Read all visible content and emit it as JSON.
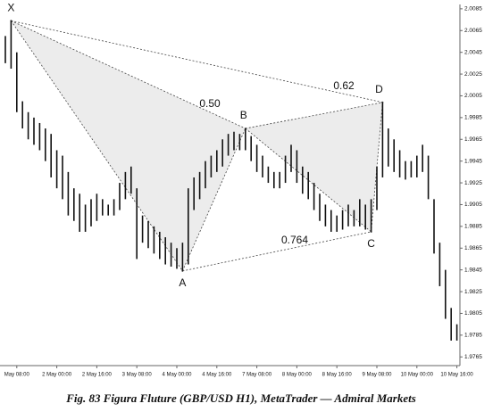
{
  "chart_data": {
    "type": "range_bar",
    "caption": "Fig. 83 Figura Fluture (GBP/USD H1), MetaTrader — Admiral Markets",
    "color": "#111111",
    "categories": [
      null,
      null,
      "May 08:00",
      null,
      null,
      null,
      null,
      null,
      null,
      "2 May 00:00",
      null,
      null,
      null,
      null,
      null,
      null,
      "2 May 16:00",
      null,
      null,
      null,
      null,
      null,
      null,
      "3 May 08:00",
      null,
      null,
      null,
      null,
      null,
      null,
      "4 May 00:00",
      null,
      null,
      null,
      null,
      null,
      null,
      "4 May 16:00",
      null,
      null,
      null,
      null,
      null,
      null,
      "7 May 08:00",
      null,
      null,
      null,
      null,
      null,
      null,
      "8 May 00:00",
      null,
      null,
      null,
      null,
      null,
      null,
      "8 May 16:00",
      null,
      null,
      null,
      null,
      null,
      null,
      "9 May 08:00",
      null,
      null,
      null,
      null,
      null,
      null,
      "10 May 00:00",
      null,
      null,
      null,
      null,
      null,
      null,
      "10 May 16:00"
    ],
    "high": [
      2.006,
      2.0074,
      2.0045,
      2.0,
      1.999,
      1.9985,
      1.998,
      1.9975,
      1.997,
      1.9955,
      1.995,
      1.9935,
      1.992,
      1.9915,
      1.9905,
      1.991,
      1.9915,
      1.991,
      1.9905,
      1.991,
      1.9925,
      1.9935,
      1.994,
      1.992,
      1.9895,
      1.989,
      1.9885,
      1.988,
      1.9875,
      1.987,
      1.9865,
      1.987,
      1.992,
      1.993,
      1.9935,
      1.9945,
      1.995,
      1.9955,
      1.9965,
      1.997,
      1.9972,
      1.997,
      1.9975,
      1.9968,
      1.996,
      1.995,
      1.994,
      1.9935,
      1.9935,
      1.995,
      1.996,
      1.9955,
      1.994,
      1.9935,
      1.9925,
      1.9915,
      1.9905,
      1.99,
      1.9895,
      1.99,
      1.9905,
      1.99,
      1.991,
      1.9905,
      1.991,
      1.994,
      1.9999,
      1.9975,
      1.9965,
      1.9955,
      1.9945,
      1.9945,
      1.995,
      1.996,
      1.995,
      1.991,
      1.987,
      1.9845,
      1.981,
      1.9795
    ],
    "low": [
      2.0035,
      2.003,
      1.999,
      1.9975,
      1.9965,
      1.996,
      1.9955,
      1.9945,
      1.993,
      1.992,
      1.991,
      1.9895,
      1.989,
      1.988,
      1.988,
      1.9885,
      1.989,
      1.9895,
      1.9895,
      1.9895,
      1.99,
      1.991,
      1.9915,
      1.9855,
      1.987,
      1.9865,
      1.986,
      1.9855,
      1.985,
      1.9848,
      1.9846,
      1.9844,
      1.985,
      1.99,
      1.991,
      1.992,
      1.993,
      1.9935,
      1.994,
      1.995,
      1.9955,
      1.9955,
      1.9955,
      1.9945,
      1.9935,
      1.993,
      1.9925,
      1.992,
      1.992,
      1.9925,
      1.9935,
      1.9925,
      1.9915,
      1.991,
      1.99,
      1.989,
      1.9885,
      1.988,
      1.988,
      1.9882,
      1.9885,
      1.9885,
      1.9885,
      1.9882,
      1.988,
      1.99,
      1.993,
      1.994,
      1.9935,
      1.993,
      1.9928,
      1.993,
      1.993,
      1.9935,
      1.991,
      1.986,
      1.983,
      1.98,
      1.978,
      1.978
    ],
    "ylim": [
      1.9757,
      2.0089
    ],
    "yticks": [
      1.9765,
      1.9785,
      1.9805,
      1.9825,
      1.9845,
      1.9865,
      1.9885,
      1.9905,
      1.9925,
      1.9945,
      1.9965,
      1.9985,
      2.0005,
      2.0025,
      2.0045,
      2.0065,
      2.0085
    ],
    "pattern": {
      "points": [
        {
          "label": "X",
          "bar": 1,
          "value": 2.0074
        },
        {
          "label": "A",
          "bar": 31,
          "value": 1.9844
        },
        {
          "label": "B",
          "bar": 42,
          "value": 1.9975
        },
        {
          "label": "C",
          "bar": 64,
          "value": 1.988
        },
        {
          "label": "D",
          "bar": 66,
          "value": 1.9999
        }
      ],
      "ratios": [
        "0.50",
        "0.62",
        "0.764"
      ]
    }
  }
}
